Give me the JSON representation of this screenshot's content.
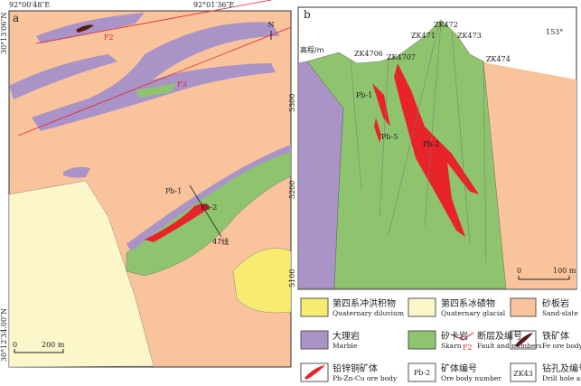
{
  "panel_a": {
    "label": "a",
    "lon_left": "92°00′48″E",
    "lon_right": "92°01′36″E",
    "lat_top": "30°13′06″N",
    "lat_bottom": "30°12′34.00″N",
    "north": "N",
    "faults": [
      "F2",
      "F3"
    ],
    "ore_bodies": [
      "Pb-1",
      "Pb-2"
    ],
    "section_line": "47线",
    "scale": [
      "0",
      "200 m"
    ]
  },
  "panel_b": {
    "label": "b",
    "azimuth": "153°",
    "elevation_title": "高程/m",
    "elevations": [
      "5300",
      "5200",
      "5100"
    ],
    "drill_holes": [
      "ZK4706",
      "ZK4707",
      "ZK471",
      "ZK472",
      "ZK473",
      "ZK474"
    ],
    "ore_bodies": [
      "Pb-1",
      "Pb-5",
      "Pb-2"
    ],
    "scale": [
      "0",
      "100 m"
    ]
  },
  "legend": {
    "items": [
      {
        "cn": "第四系冲洪积物",
        "en": "Quaternary diluvium"
      },
      {
        "cn": "第四系冰碛物",
        "en": "Quaternary glacial"
      },
      {
        "cn": "砂板岩",
        "en": "Sand-slate"
      },
      {
        "cn": "大理岩",
        "en": "Marble"
      },
      {
        "cn": "矽卡岩",
        "en": "Skarn"
      },
      {
        "cn": "断层及编号",
        "en": "Fault and numbers"
      },
      {
        "cn": "铁矿体",
        "en": "Fe ore body"
      },
      {
        "cn": "铅锌铜矿体",
        "en": "Pb-Zn-Cu ore body"
      },
      {
        "cn": "矿体编号",
        "en": "Ore body number"
      },
      {
        "cn": "钻孔及编号",
        "en": "Drill hole and number"
      }
    ],
    "fault_sample": "F2",
    "ore_body_sample": "Pb-2",
    "drill_sample": "ZK43"
  }
}
